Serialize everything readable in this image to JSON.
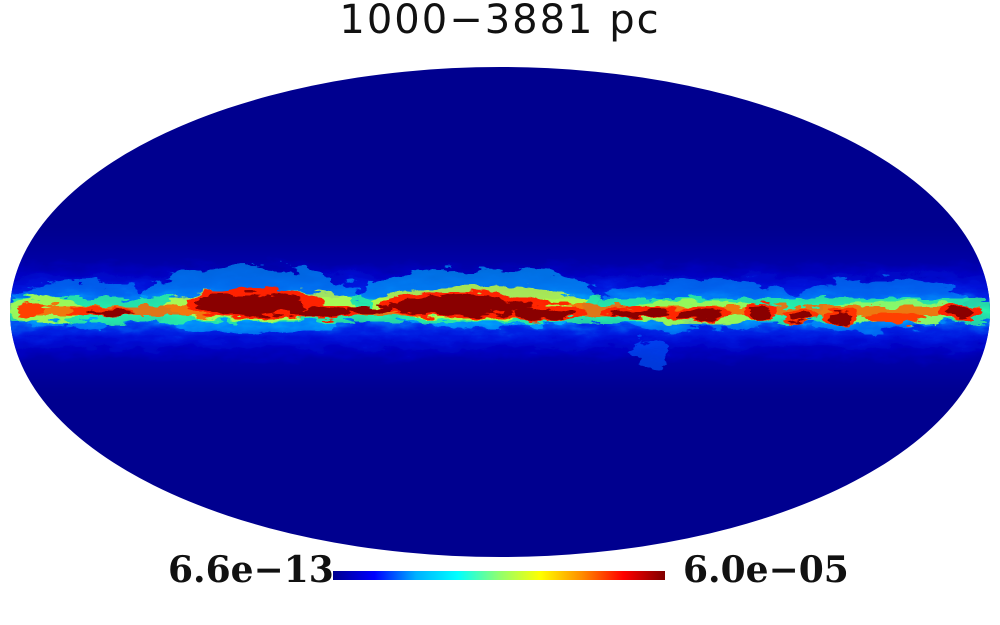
{
  "title": "1000−3881 pc",
  "colorbar": {
    "min_label": "6.6e−13",
    "max_label": "6.0e−05",
    "colors": [
      "#00008f",
      "#0000ff",
      "#00b0ff",
      "#00ffff",
      "#8fff70",
      "#ffff00",
      "#ff8c00",
      "#ff0000",
      "#800000"
    ]
  },
  "map": {
    "projection": "mollweide",
    "background_color": "#00008f",
    "outside_color": "#ffffff"
  }
}
